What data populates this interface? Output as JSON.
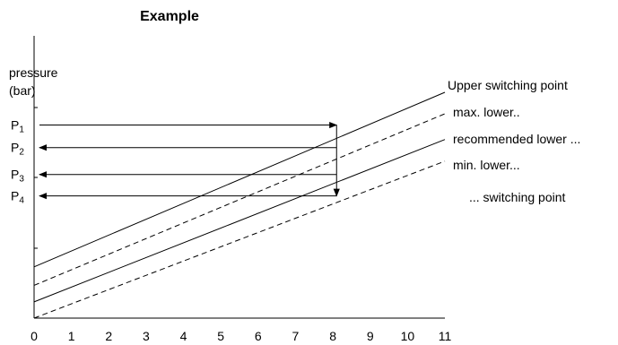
{
  "chart_data": {
    "type": "line",
    "title": "Example",
    "ylabel_line1": "pressure",
    "ylabel_line2": "(bar)",
    "xlabel": "",
    "x_ticks": [
      "0",
      "1",
      "2",
      "3",
      "4",
      "5",
      "6",
      "7",
      "8",
      "9",
      "10",
      "11"
    ],
    "xlim": [
      0,
      11
    ],
    "ylim": [
      0,
      10
    ],
    "grid": false,
    "series": [
      {
        "name": "Upper switching point",
        "style": "solid",
        "x": [
          0,
          11
        ],
        "y": [
          2.27,
          10.0
        ]
      },
      {
        "name": "max. lower..",
        "style": "dashed",
        "x": [
          0,
          11
        ],
        "y": [
          1.45,
          9.05
        ]
      },
      {
        "name": "recommended lower ...",
        "style": "solid",
        "x": [
          0,
          11
        ],
        "y": [
          0.72,
          7.91
        ]
      },
      {
        "name": "min. lower...",
        "style": "dashed",
        "x": [
          0,
          11
        ],
        "y": [
          0.0,
          6.95
        ]
      }
    ],
    "extra_label": "... switching point",
    "pressure_levels": [
      {
        "label": "P",
        "sub": "1",
        "y": 8.55,
        "direction": "right"
      },
      {
        "label": "P",
        "sub": "2",
        "y": 7.55,
        "direction": "left"
      },
      {
        "label": "P",
        "sub": "3",
        "y": 6.36,
        "direction": "left"
      },
      {
        "label": "P",
        "sub": "4",
        "y": 5.41,
        "direction": "left"
      }
    ],
    "switch_x": 8.1
  }
}
